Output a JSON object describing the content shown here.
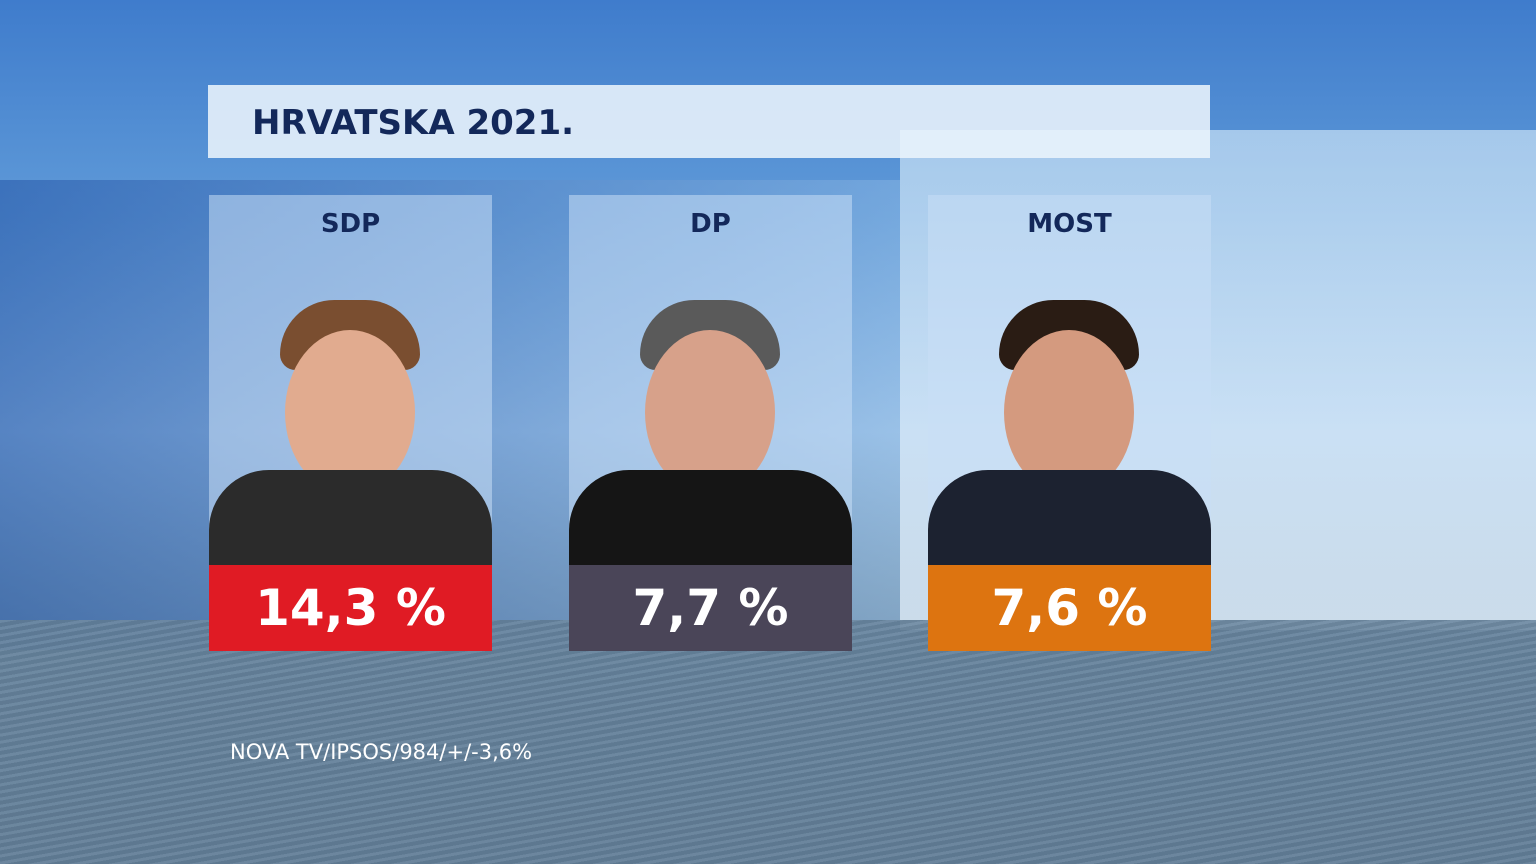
{
  "title": "HRVATSKA 2021.",
  "results": [
    {
      "party": "SDP",
      "value": "14,3 %",
      "color": "#e01b24"
    },
    {
      "party": "DP",
      "value": "7,7 %",
      "color": "#4a4558"
    },
    {
      "party": "MOST",
      "value": "7,6 %",
      "color": "#dd7410"
    }
  ],
  "source": "NOVA TV/IPSOS/984/+/-3,6%"
}
